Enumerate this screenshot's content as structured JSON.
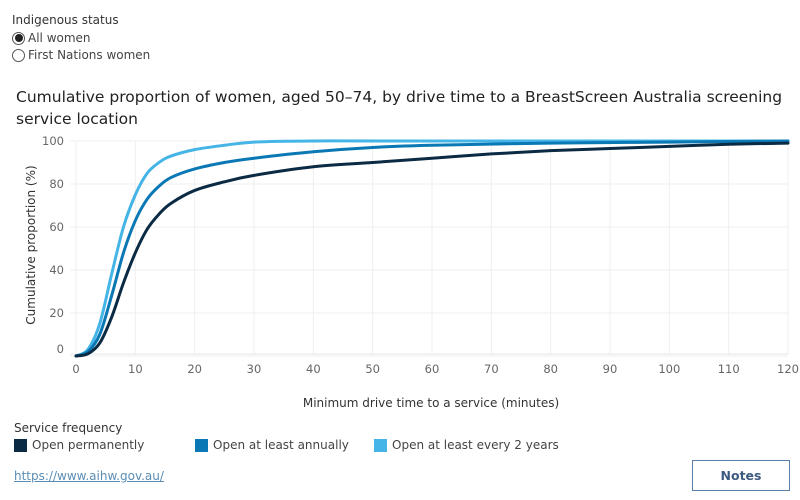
{
  "filter": {
    "title": "Indigenous status",
    "options": [
      {
        "label": "All women",
        "selected": true
      },
      {
        "label": "First Nations women",
        "selected": false
      }
    ]
  },
  "chart_data": {
    "type": "line",
    "title": "Cumulative proportion of women, aged 50–74, by drive time to a BreastScreen Australia screening service location",
    "xlabel": "Minimum drive time to a service (minutes)",
    "ylabel": "Cumulative proportion (%)",
    "xlim": [
      0,
      120
    ],
    "ylim": [
      0,
      100
    ],
    "xticks": [
      "0",
      "10",
      "20",
      "30",
      "40",
      "50",
      "60",
      "70",
      "80",
      "90",
      "100",
      "110",
      "120"
    ],
    "yticks": [
      "0",
      "20",
      "40",
      "60",
      "80",
      "100"
    ],
    "grid": true,
    "legend_title": "Service frequency",
    "legend_position": "bottom",
    "series": [
      {
        "name": "Open permanently",
        "color": "#0b2a44",
        "x": [
          0,
          2,
          4,
          6,
          8,
          10,
          12,
          14,
          16,
          20,
          25,
          30,
          40,
          50,
          60,
          70,
          80,
          90,
          100,
          110,
          120
        ],
        "y": [
          0,
          1,
          6,
          18,
          34,
          48,
          59,
          66,
          71,
          77,
          81,
          84,
          88,
          90,
          92,
          94,
          95.5,
          96.5,
          97.5,
          98.5,
          99
        ]
      },
      {
        "name": "Open at least annually",
        "color": "#0a78b4",
        "x": [
          0,
          2,
          4,
          6,
          8,
          10,
          12,
          14,
          16,
          20,
          25,
          30,
          40,
          50,
          60,
          80,
          100,
          120
        ],
        "y": [
          0,
          2,
          10,
          28,
          48,
          63,
          73,
          79,
          83,
          87,
          90,
          92,
          95,
          97,
          98,
          99,
          99.5,
          100
        ]
      },
      {
        "name": "Open at least every 2 years",
        "color": "#45b4e6",
        "x": [
          0,
          2,
          4,
          6,
          8,
          10,
          12,
          14,
          16,
          20,
          25,
          30,
          40,
          60,
          120
        ],
        "y": [
          0,
          3,
          15,
          38,
          60,
          75,
          85,
          90,
          93,
          96,
          98,
          99.5,
          100,
          100,
          100
        ]
      }
    ]
  },
  "footer": {
    "link": "https://www.aihw.gov.au/",
    "notes_label": "Notes"
  }
}
